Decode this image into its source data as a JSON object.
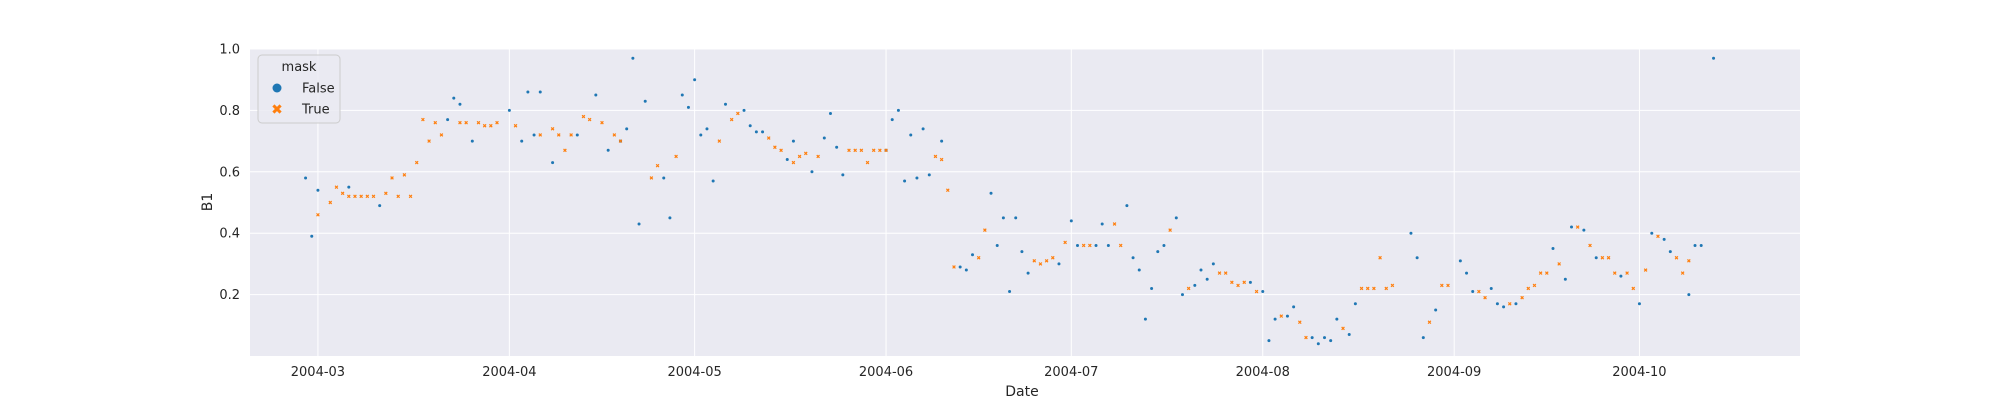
{
  "chart_data": {
    "type": "scatter",
    "title": "",
    "xlabel": "Date",
    "ylabel": "B1",
    "x_ticks": [
      "2004-03",
      "2004-04",
      "2004-05",
      "2004-06",
      "2004-07",
      "2004-08",
      "2004-09",
      "2004-10"
    ],
    "y_ticks": [
      "0.2",
      "0.4",
      "0.6",
      "0.8",
      "1.0"
    ],
    "xlim": [
      "2004-02-19",
      "2004-10-27"
    ],
    "ylim": [
      0.0,
      1.0
    ],
    "grid": true,
    "background": "#eaeaf2",
    "legend": {
      "title": "mask",
      "placement": "top-left",
      "entries": [
        {
          "label": "False",
          "marker": "circle",
          "color": "#1f77b4"
        },
        {
          "label": "True",
          "marker": "x",
          "color": "#ff7f0e"
        }
      ]
    },
    "series": [
      {
        "name": "False",
        "color": "#1f77b4",
        "marker": "circle",
        "points": [
          [
            "2004-02-28",
            0.58
          ],
          [
            "2004-02-29",
            0.39
          ],
          [
            "2004-03-01",
            0.54
          ],
          [
            "2004-03-06",
            0.55
          ],
          [
            "2004-03-11",
            0.49
          ],
          [
            "2004-03-22",
            0.77
          ],
          [
            "2004-03-23",
            0.84
          ],
          [
            "2004-03-24",
            0.82
          ],
          [
            "2004-03-26",
            0.7
          ],
          [
            "2004-04-01",
            0.8
          ],
          [
            "2004-04-03",
            0.7
          ],
          [
            "2004-04-04",
            0.86
          ],
          [
            "2004-04-05",
            0.72
          ],
          [
            "2004-04-06",
            0.86
          ],
          [
            "2004-04-08",
            0.63
          ],
          [
            "2004-04-12",
            0.72
          ],
          [
            "2004-04-15",
            0.85
          ],
          [
            "2004-04-17",
            0.67
          ],
          [
            "2004-04-19",
            0.7
          ],
          [
            "2004-04-20",
            0.74
          ],
          [
            "2004-04-21",
            0.97
          ],
          [
            "2004-04-22",
            0.43
          ],
          [
            "2004-04-23",
            0.83
          ],
          [
            "2004-04-26",
            0.58
          ],
          [
            "2004-04-27",
            0.45
          ],
          [
            "2004-04-29",
            0.85
          ],
          [
            "2004-04-30",
            0.81
          ],
          [
            "2004-05-01",
            0.9
          ],
          [
            "2004-05-02",
            0.72
          ],
          [
            "2004-05-03",
            0.74
          ],
          [
            "2004-05-04",
            0.57
          ],
          [
            "2004-05-06",
            0.82
          ],
          [
            "2004-05-09",
            0.8
          ],
          [
            "2004-05-10",
            0.75
          ],
          [
            "2004-05-11",
            0.73
          ],
          [
            "2004-05-12",
            0.73
          ],
          [
            "2004-05-16",
            0.64
          ],
          [
            "2004-05-17",
            0.7
          ],
          [
            "2004-05-20",
            0.6
          ],
          [
            "2004-05-22",
            0.71
          ],
          [
            "2004-05-23",
            0.79
          ],
          [
            "2004-05-24",
            0.68
          ],
          [
            "2004-05-25",
            0.59
          ],
          [
            "2004-06-01",
            0.67
          ],
          [
            "2004-06-02",
            0.77
          ],
          [
            "2004-06-03",
            0.8
          ],
          [
            "2004-06-04",
            0.57
          ],
          [
            "2004-06-05",
            0.72
          ],
          [
            "2004-06-06",
            0.58
          ],
          [
            "2004-06-07",
            0.74
          ],
          [
            "2004-06-08",
            0.59
          ],
          [
            "2004-06-10",
            0.7
          ],
          [
            "2004-06-13",
            0.29
          ],
          [
            "2004-06-14",
            0.28
          ],
          [
            "2004-06-15",
            0.33
          ],
          [
            "2004-06-18",
            0.53
          ],
          [
            "2004-06-19",
            0.36
          ],
          [
            "2004-06-20",
            0.45
          ],
          [
            "2004-06-21",
            0.21
          ],
          [
            "2004-06-22",
            0.45
          ],
          [
            "2004-06-23",
            0.34
          ],
          [
            "2004-06-24",
            0.27
          ],
          [
            "2004-06-29",
            0.3
          ],
          [
            "2004-07-01",
            0.44
          ],
          [
            "2004-07-02",
            0.36
          ],
          [
            "2004-07-05",
            0.36
          ],
          [
            "2004-07-06",
            0.43
          ],
          [
            "2004-07-07",
            0.36
          ],
          [
            "2004-07-10",
            0.49
          ],
          [
            "2004-07-11",
            0.32
          ],
          [
            "2004-07-12",
            0.28
          ],
          [
            "2004-07-13",
            0.12
          ],
          [
            "2004-07-14",
            0.22
          ],
          [
            "2004-07-15",
            0.34
          ],
          [
            "2004-07-16",
            0.36
          ],
          [
            "2004-07-18",
            0.45
          ],
          [
            "2004-07-19",
            0.2
          ],
          [
            "2004-07-21",
            0.23
          ],
          [
            "2004-07-22",
            0.28
          ],
          [
            "2004-07-23",
            0.25
          ],
          [
            "2004-07-24",
            0.3
          ],
          [
            "2004-07-30",
            0.24
          ],
          [
            "2004-08-01",
            0.21
          ],
          [
            "2004-08-02",
            0.05
          ],
          [
            "2004-08-03",
            0.12
          ],
          [
            "2004-08-05",
            0.13
          ],
          [
            "2004-08-06",
            0.16
          ],
          [
            "2004-08-09",
            0.06
          ],
          [
            "2004-08-10",
            0.04
          ],
          [
            "2004-08-11",
            0.06
          ],
          [
            "2004-08-12",
            0.05
          ],
          [
            "2004-08-13",
            0.12
          ],
          [
            "2004-08-15",
            0.07
          ],
          [
            "2004-08-16",
            0.17
          ],
          [
            "2004-08-25",
            0.4
          ],
          [
            "2004-08-26",
            0.32
          ],
          [
            "2004-08-27",
            0.06
          ],
          [
            "2004-08-29",
            0.15
          ],
          [
            "2004-09-02",
            0.31
          ],
          [
            "2004-09-03",
            0.27
          ],
          [
            "2004-09-04",
            0.21
          ],
          [
            "2004-09-07",
            0.22
          ],
          [
            "2004-09-08",
            0.17
          ],
          [
            "2004-09-09",
            0.16
          ],
          [
            "2004-09-11",
            0.17
          ],
          [
            "2004-09-17",
            0.35
          ],
          [
            "2004-09-19",
            0.25
          ],
          [
            "2004-09-20",
            0.42
          ],
          [
            "2004-09-22",
            0.41
          ],
          [
            "2004-09-24",
            0.32
          ],
          [
            "2004-09-28",
            0.26
          ],
          [
            "2004-10-01",
            0.17
          ],
          [
            "2004-10-03",
            0.4
          ],
          [
            "2004-10-05",
            0.38
          ],
          [
            "2004-10-06",
            0.34
          ],
          [
            "2004-10-09",
            0.2
          ],
          [
            "2004-10-10",
            0.36
          ],
          [
            "2004-10-11",
            0.36
          ],
          [
            "2004-10-13",
            0.97
          ]
        ]
      },
      {
        "name": "True",
        "color": "#ff7f0e",
        "marker": "x",
        "points": [
          [
            "2004-03-01",
            0.46
          ],
          [
            "2004-03-03",
            0.5
          ],
          [
            "2004-03-04",
            0.55
          ],
          [
            "2004-03-05",
            0.53
          ],
          [
            "2004-03-06",
            0.52
          ],
          [
            "2004-03-07",
            0.52
          ],
          [
            "2004-03-08",
            0.52
          ],
          [
            "2004-03-09",
            0.52
          ],
          [
            "2004-03-10",
            0.52
          ],
          [
            "2004-03-12",
            0.53
          ],
          [
            "2004-03-13",
            0.58
          ],
          [
            "2004-03-14",
            0.52
          ],
          [
            "2004-03-15",
            0.59
          ],
          [
            "2004-03-16",
            0.52
          ],
          [
            "2004-03-17",
            0.63
          ],
          [
            "2004-03-18",
            0.77
          ],
          [
            "2004-03-19",
            0.7
          ],
          [
            "2004-03-20",
            0.76
          ],
          [
            "2004-03-21",
            0.72
          ],
          [
            "2004-03-24",
            0.76
          ],
          [
            "2004-03-25",
            0.76
          ],
          [
            "2004-03-27",
            0.76
          ],
          [
            "2004-03-28",
            0.75
          ],
          [
            "2004-03-29",
            0.75
          ],
          [
            "2004-03-30",
            0.76
          ],
          [
            "2004-04-02",
            0.75
          ],
          [
            "2004-04-06",
            0.72
          ],
          [
            "2004-04-08",
            0.74
          ],
          [
            "2004-04-09",
            0.72
          ],
          [
            "2004-04-10",
            0.67
          ],
          [
            "2004-04-11",
            0.72
          ],
          [
            "2004-04-13",
            0.78
          ],
          [
            "2004-04-14",
            0.77
          ],
          [
            "2004-04-16",
            0.76
          ],
          [
            "2004-04-18",
            0.72
          ],
          [
            "2004-04-19",
            0.7
          ],
          [
            "2004-04-24",
            0.58
          ],
          [
            "2004-04-25",
            0.62
          ],
          [
            "2004-04-28",
            0.65
          ],
          [
            "2004-05-05",
            0.7
          ],
          [
            "2004-05-07",
            0.77
          ],
          [
            "2004-05-08",
            0.79
          ],
          [
            "2004-05-13",
            0.71
          ],
          [
            "2004-05-14",
            0.68
          ],
          [
            "2004-05-15",
            0.67
          ],
          [
            "2004-05-17",
            0.63
          ],
          [
            "2004-05-18",
            0.65
          ],
          [
            "2004-05-19",
            0.66
          ],
          [
            "2004-05-21",
            0.65
          ],
          [
            "2004-05-26",
            0.67
          ],
          [
            "2004-05-27",
            0.67
          ],
          [
            "2004-05-28",
            0.67
          ],
          [
            "2004-05-29",
            0.63
          ],
          [
            "2004-05-30",
            0.67
          ],
          [
            "2004-05-31",
            0.67
          ],
          [
            "2004-06-01",
            0.67
          ],
          [
            "2004-06-09",
            0.65
          ],
          [
            "2004-06-10",
            0.64
          ],
          [
            "2004-06-11",
            0.54
          ],
          [
            "2004-06-12",
            0.29
          ],
          [
            "2004-06-16",
            0.32
          ],
          [
            "2004-06-17",
            0.41
          ],
          [
            "2004-06-25",
            0.31
          ],
          [
            "2004-06-26",
            0.3
          ],
          [
            "2004-06-27",
            0.31
          ],
          [
            "2004-06-28",
            0.32
          ],
          [
            "2004-06-30",
            0.37
          ],
          [
            "2004-07-03",
            0.36
          ],
          [
            "2004-07-04",
            0.36
          ],
          [
            "2004-07-08",
            0.43
          ],
          [
            "2004-07-09",
            0.36
          ],
          [
            "2004-07-17",
            0.41
          ],
          [
            "2004-07-20",
            0.22
          ],
          [
            "2004-07-25",
            0.27
          ],
          [
            "2004-07-26",
            0.27
          ],
          [
            "2004-07-27",
            0.24
          ],
          [
            "2004-07-28",
            0.23
          ],
          [
            "2004-07-29",
            0.24
          ],
          [
            "2004-07-31",
            0.21
          ],
          [
            "2004-08-04",
            0.13
          ],
          [
            "2004-08-07",
            0.11
          ],
          [
            "2004-08-08",
            0.06
          ],
          [
            "2004-08-14",
            0.09
          ],
          [
            "2004-08-17",
            0.22
          ],
          [
            "2004-08-18",
            0.22
          ],
          [
            "2004-08-19",
            0.22
          ],
          [
            "2004-08-20",
            0.32
          ],
          [
            "2004-08-21",
            0.22
          ],
          [
            "2004-08-22",
            0.23
          ],
          [
            "2004-08-28",
            0.11
          ],
          [
            "2004-08-30",
            0.23
          ],
          [
            "2004-08-31",
            0.23
          ],
          [
            "2004-09-05",
            0.21
          ],
          [
            "2004-09-06",
            0.19
          ],
          [
            "2004-09-10",
            0.17
          ],
          [
            "2004-09-12",
            0.19
          ],
          [
            "2004-09-13",
            0.22
          ],
          [
            "2004-09-14",
            0.23
          ],
          [
            "2004-09-15",
            0.27
          ],
          [
            "2004-09-16",
            0.27
          ],
          [
            "2004-09-18",
            0.3
          ],
          [
            "2004-09-21",
            0.42
          ],
          [
            "2004-09-23",
            0.36
          ],
          [
            "2004-09-25",
            0.32
          ],
          [
            "2004-09-26",
            0.32
          ],
          [
            "2004-09-27",
            0.27
          ],
          [
            "2004-09-29",
            0.27
          ],
          [
            "2004-09-30",
            0.22
          ],
          [
            "2004-10-02",
            0.28
          ],
          [
            "2004-10-04",
            0.39
          ],
          [
            "2004-10-07",
            0.32
          ],
          [
            "2004-10-08",
            0.27
          ],
          [
            "2004-10-09",
            0.31
          ]
        ]
      }
    ]
  }
}
